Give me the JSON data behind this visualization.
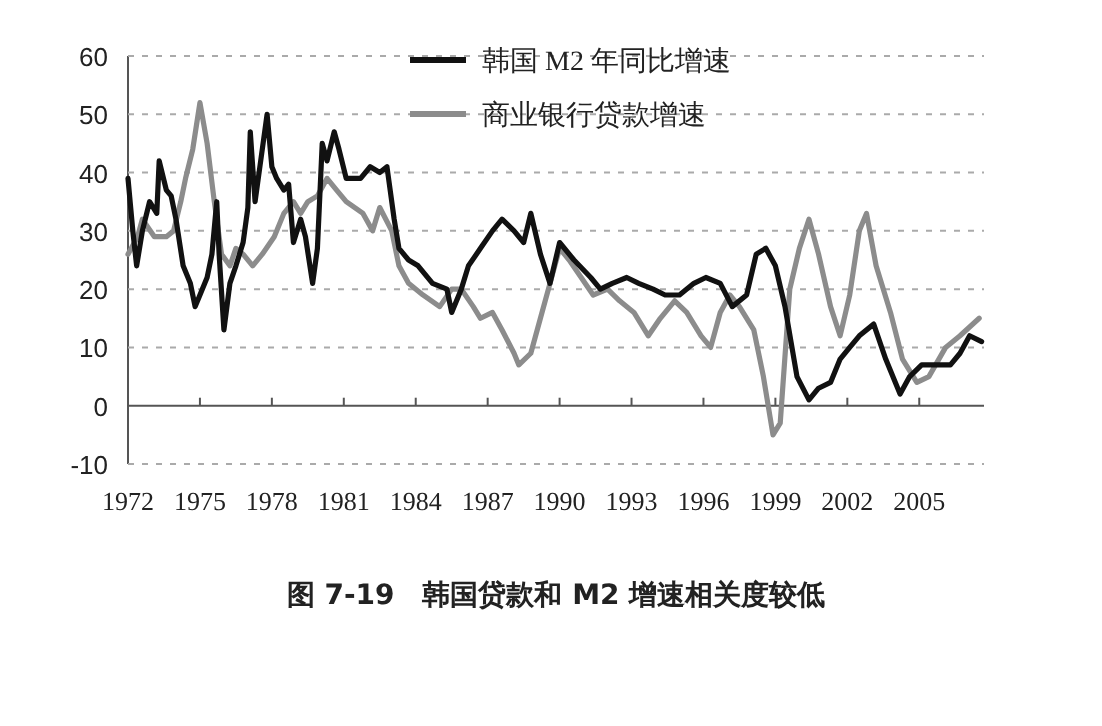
{
  "chart_data": {
    "type": "line",
    "title": "图 7-19　韩国贷款和 M2 增速相关度较低",
    "xlim": [
      1972,
      2007.7
    ],
    "xticks": [
      1972,
      1975,
      1978,
      1981,
      1984,
      1987,
      1990,
      1993,
      1996,
      1999,
      2002,
      2005
    ],
    "ylim": [
      -10,
      60
    ],
    "yticks": [
      -10,
      0,
      10,
      20,
      30,
      40,
      50,
      60
    ],
    "grid": "y",
    "legend": "top",
    "line_style": "solid",
    "series": [
      {
        "name": "韩国 M2 年同比增速",
        "color": "#111111",
        "x": [
          1972.0,
          1972.2,
          1972.36,
          1972.6,
          1972.9,
          1973.2,
          1973.3,
          1973.6,
          1973.8,
          1974.0,
          1974.3,
          1974.6,
          1974.8,
          1975.0,
          1975.3,
          1975.5,
          1975.7,
          1975.8,
          1976.0,
          1976.25,
          1976.5,
          1976.8,
          1977.0,
          1977.1,
          1977.3,
          1977.5,
          1977.8,
          1978.0,
          1978.2,
          1978.5,
          1978.7,
          1978.9,
          1979.2,
          1979.4,
          1979.7,
          1979.9,
          1980.1,
          1980.3,
          1980.6,
          1980.8,
          1981.1,
          1981.7,
          1982.1,
          1982.5,
          1982.8,
          1983.1,
          1983.3,
          1983.7,
          1984.1,
          1984.7,
          1985.3,
          1985.5,
          1985.9,
          1986.2,
          1986.7,
          1987.2,
          1987.6,
          1988.1,
          1988.5,
          1988.8,
          1989.2,
          1989.6,
          1990.0,
          1990.6,
          1991.3,
          1991.7,
          1992.2,
          1992.8,
          1993.3,
          1993.9,
          1994.4,
          1995.0,
          1995.6,
          1996.1,
          1996.7,
          1997.2,
          1997.8,
          1998.2,
          1998.6,
          1999.0,
          1999.4,
          1999.9,
          2000.4,
          2000.8,
          2001.3,
          2001.7,
          2002.1,
          2002.5,
          2003.1,
          2003.6,
          2004.2,
          2004.6,
          2005.1,
          2005.7,
          2006.3,
          2006.7,
          2007.1,
          2007.6
        ],
        "values": [
          39,
          30,
          24,
          30,
          35,
          33,
          42,
          37,
          36,
          32,
          24,
          21,
          17,
          19,
          22,
          26,
          35,
          26,
          13,
          21,
          24,
          28,
          34,
          47,
          35,
          41,
          50,
          41,
          39,
          37,
          38,
          28,
          32,
          29,
          21,
          27,
          45,
          42,
          47,
          44,
          39,
          39,
          41,
          40,
          41,
          32,
          27,
          25,
          24,
          21,
          20,
          16,
          20,
          24,
          27,
          30,
          32,
          30,
          28,
          33,
          26,
          21,
          28,
          25,
          22,
          20,
          21,
          22,
          21,
          20,
          19,
          19,
          21,
          22,
          21,
          17,
          19,
          26,
          27,
          24,
          17,
          5,
          1,
          3,
          4,
          8,
          10,
          12,
          14,
          8,
          2,
          5,
          7,
          7,
          7,
          9,
          12,
          11
        ]
      },
      {
        "name": "商业银行贷款增速",
        "color": "#8c8c8c",
        "x": [
          1972.0,
          1972.4,
          1972.6,
          1973.1,
          1973.6,
          1973.9,
          1974.2,
          1974.4,
          1974.7,
          1975.0,
          1975.3,
          1975.6,
          1975.9,
          1976.25,
          1976.5,
          1976.8,
          1977.2,
          1977.6,
          1978.1,
          1978.5,
          1978.9,
          1979.2,
          1979.5,
          1979.9,
          1980.3,
          1980.7,
          1981.1,
          1981.8,
          1982.2,
          1982.5,
          1983.0,
          1983.3,
          1983.7,
          1984.3,
          1985.0,
          1985.5,
          1985.9,
          1986.4,
          1986.7,
          1987.2,
          1987.6,
          1988.1,
          1988.3,
          1988.8,
          1989.2,
          1989.6,
          1990.0,
          1990.4,
          1990.9,
          1991.4,
          1992.0,
          1992.5,
          1993.1,
          1993.7,
          1994.2,
          1994.8,
          1995.3,
          1995.9,
          1996.3,
          1996.7,
          1997.1,
          1997.5,
          1998.1,
          1998.5,
          1998.9,
          1999.2,
          1999.6,
          2000.0,
          2000.4,
          2000.8,
          2001.3,
          2001.7,
          2002.1,
          2002.5,
          2002.8,
          2003.2,
          2003.8,
          2004.3,
          2004.9,
          2005.4,
          2006.1,
          2006.7,
          2007.5
        ],
        "values": [
          26,
          29,
          32,
          29,
          29,
          30,
          35,
          39,
          44,
          52,
          45,
          35,
          26,
          24,
          27,
          26,
          24,
          26,
          29,
          33,
          35,
          33,
          35,
          36,
          39,
          37,
          35,
          33,
          30,
          34,
          30,
          24,
          21,
          19,
          17,
          20,
          20,
          17,
          15,
          16,
          13,
          9,
          7,
          9,
          15,
          21,
          27,
          25,
          22,
          19,
          20,
          18,
          16,
          12,
          15,
          18,
          16,
          12,
          10,
          16,
          19,
          17,
          13,
          5,
          -5,
          -3,
          20,
          27,
          32,
          26,
          17,
          12,
          19,
          30,
          33,
          24,
          16,
          8,
          4,
          5,
          10,
          12,
          15
        ]
      }
    ]
  }
}
